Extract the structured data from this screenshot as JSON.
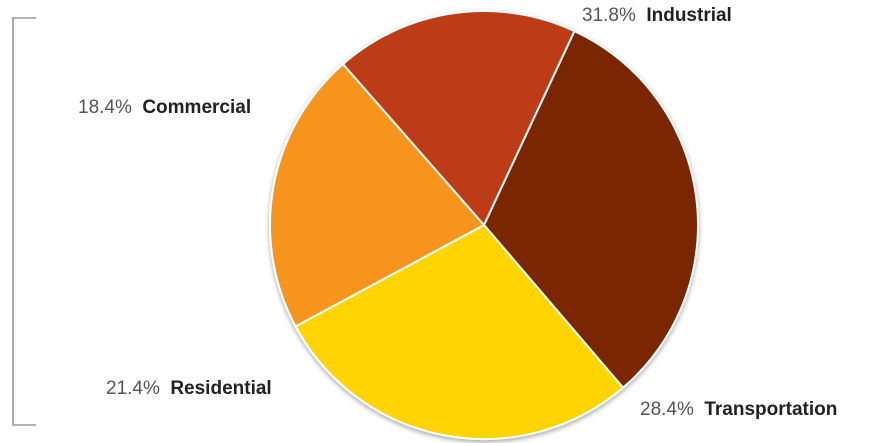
{
  "chart_data": {
    "type": "pie",
    "title": "",
    "slices": [
      {
        "label": "Industrial",
        "value": 31.8,
        "percent_label": "31.8%",
        "color": "#7a2500"
      },
      {
        "label": "Transportation",
        "value": 28.4,
        "percent_label": "28.4%",
        "color": "#ffd400"
      },
      {
        "label": "Residential",
        "value": 21.4,
        "percent_label": "21.4%",
        "color": "#f7941d"
      },
      {
        "label": "Commercial",
        "value": 18.4,
        "percent_label": "18.4%",
        "color": "#bd3a16"
      }
    ],
    "legend": "none",
    "slice_outline_color": "#ffffff",
    "bracket_color": "#999999"
  }
}
